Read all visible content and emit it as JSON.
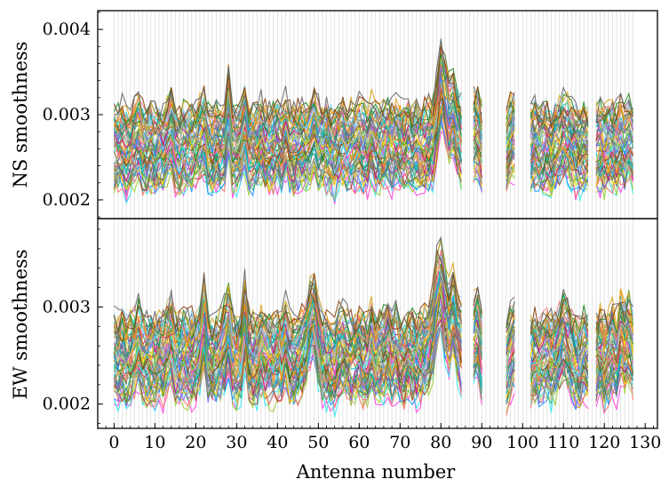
{
  "chart_data": [
    {
      "type": "line",
      "panel": "top",
      "ylabel": "NS smoothness",
      "ylim": [
        0.00178,
        0.00422
      ],
      "yticks": [
        0.002,
        0.003,
        0.004
      ],
      "ytick_labels": [
        "0.002",
        "0.003",
        "0.004"
      ],
      "grid": "vertical lines at every antenna",
      "n_series": 60,
      "baseline_profile": [
        2.61,
        2.6,
        2.63,
        2.57,
        2.59,
        2.63,
        2.7,
        2.6,
        2.58,
        2.61,
        2.59,
        2.62,
        2.6,
        2.66,
        2.77,
        2.6,
        2.57,
        2.62,
        2.59,
        2.61,
        2.63,
        2.68,
        2.73,
        2.6,
        2.58,
        2.62,
        2.59,
        2.64,
        2.95,
        2.62,
        2.6,
        2.63,
        2.79,
        2.61,
        2.59,
        2.62,
        2.67,
        2.6,
        2.58,
        2.61,
        2.64,
        2.6,
        2.7,
        2.62,
        2.59,
        2.61,
        2.63,
        2.6,
        2.67,
        2.75,
        2.63,
        2.6,
        2.62,
        2.58,
        2.55,
        2.62,
        2.64,
        2.6,
        2.63,
        2.61,
        2.66,
        2.62,
        2.6,
        2.7,
        2.62,
        2.6,
        2.63,
        2.66,
        2.61,
        2.65,
        2.62,
        2.6,
        2.64,
        2.61,
        2.63,
        2.6,
        2.62,
        2.64,
        2.66,
        2.9,
        3.15,
        3.05,
        2.85,
        2.9,
        2.75,
        2.65,
        null,
        null,
        2.7,
        2.72,
        2.62,
        null,
        null,
        null,
        null,
        null,
        2.58,
        2.68,
        2.72,
        null,
        null,
        null,
        2.6,
        2.62,
        2.58,
        2.6,
        2.62,
        2.58,
        2.64,
        2.66,
        2.72,
        2.68,
        2.63,
        2.6,
        2.58,
        2.62,
        2.6,
        null,
        2.6,
        2.62,
        2.58,
        2.61,
        2.63,
        2.6,
        2.66,
        2.62,
        2.7,
        2.62
      ],
      "spread_range": [
        -0.5,
        0.5
      ],
      "spread_unit": "x1e-3"
    },
    {
      "type": "line",
      "panel": "bottom",
      "ylabel": "EW smoothness",
      "xlabel": "Antenna number",
      "ylim": [
        0.00175,
        0.00391
      ],
      "yticks": [
        0.002,
        0.003
      ],
      "ytick_labels": [
        "0.002",
        "0.003"
      ],
      "xlim": [
        -4,
        133
      ],
      "xticks": [
        0,
        10,
        20,
        30,
        40,
        50,
        60,
        70,
        80,
        90,
        100,
        110,
        120,
        130
      ],
      "xtick_labels": [
        "0",
        "10",
        "20",
        "30",
        "40",
        "50",
        "60",
        "70",
        "80",
        "90",
        "100",
        "110",
        "120",
        "130"
      ],
      "grid": "vertical lines at every antenna",
      "n_series": 60,
      "baseline_profile": [
        2.5,
        2.48,
        2.52,
        2.47,
        2.5,
        2.55,
        2.62,
        2.5,
        2.48,
        2.5,
        2.47,
        2.52,
        2.5,
        2.6,
        2.65,
        2.5,
        2.48,
        2.52,
        2.49,
        2.5,
        2.52,
        2.6,
        2.8,
        2.5,
        2.48,
        2.52,
        2.55,
        2.6,
        2.72,
        2.5,
        2.48,
        2.52,
        2.78,
        2.5,
        2.48,
        2.5,
        2.58,
        2.52,
        2.5,
        2.47,
        2.52,
        2.5,
        2.62,
        2.5,
        2.48,
        2.5,
        2.55,
        2.62,
        2.78,
        2.82,
        2.62,
        2.48,
        2.5,
        2.47,
        2.45,
        2.55,
        2.57,
        2.52,
        2.5,
        2.52,
        2.55,
        2.5,
        2.48,
        2.6,
        2.5,
        2.52,
        2.55,
        2.6,
        2.52,
        2.55,
        2.5,
        2.48,
        2.55,
        2.52,
        2.5,
        2.52,
        2.55,
        2.6,
        2.7,
        2.95,
        3.05,
        2.85,
        2.75,
        2.85,
        2.7,
        2.6,
        null,
        null,
        2.65,
        2.7,
        2.5,
        null,
        null,
        null,
        null,
        null,
        2.45,
        2.55,
        2.65,
        null,
        null,
        null,
        2.5,
        2.52,
        2.48,
        2.5,
        2.55,
        2.48,
        2.52,
        2.6,
        2.68,
        2.62,
        2.52,
        2.48,
        2.45,
        2.55,
        2.52,
        null,
        2.5,
        2.55,
        2.48,
        2.52,
        2.6,
        2.5,
        2.7,
        2.62,
        2.65,
        2.55
      ],
      "spread_range": [
        -0.45,
        0.45
      ],
      "spread_unit": "x1e-3"
    }
  ],
  "colors": {
    "palette": [
      "#ff44dd",
      "#33e8ee",
      "#9acd32",
      "#ff6f6f",
      "#1e90ff",
      "#b4c45a",
      "#a0522d",
      "#7b68ee",
      "#3cb371",
      "#ffd700",
      "#808080",
      "#6b8e23",
      "#b0c4de",
      "#d2b48c",
      "#c71585",
      "#20b2aa",
      "#4682b4",
      "#2e8b57",
      "#cd853f",
      "#9370db",
      "#00ced1",
      "#ff8c00",
      "#556b2f",
      "#bdb76b",
      "#f08080",
      "#87cefa",
      "#228b22",
      "#daa520",
      "#8b4513",
      "#696969"
    ],
    "grid_line": "#d8d8d8",
    "frame": "#000000"
  }
}
